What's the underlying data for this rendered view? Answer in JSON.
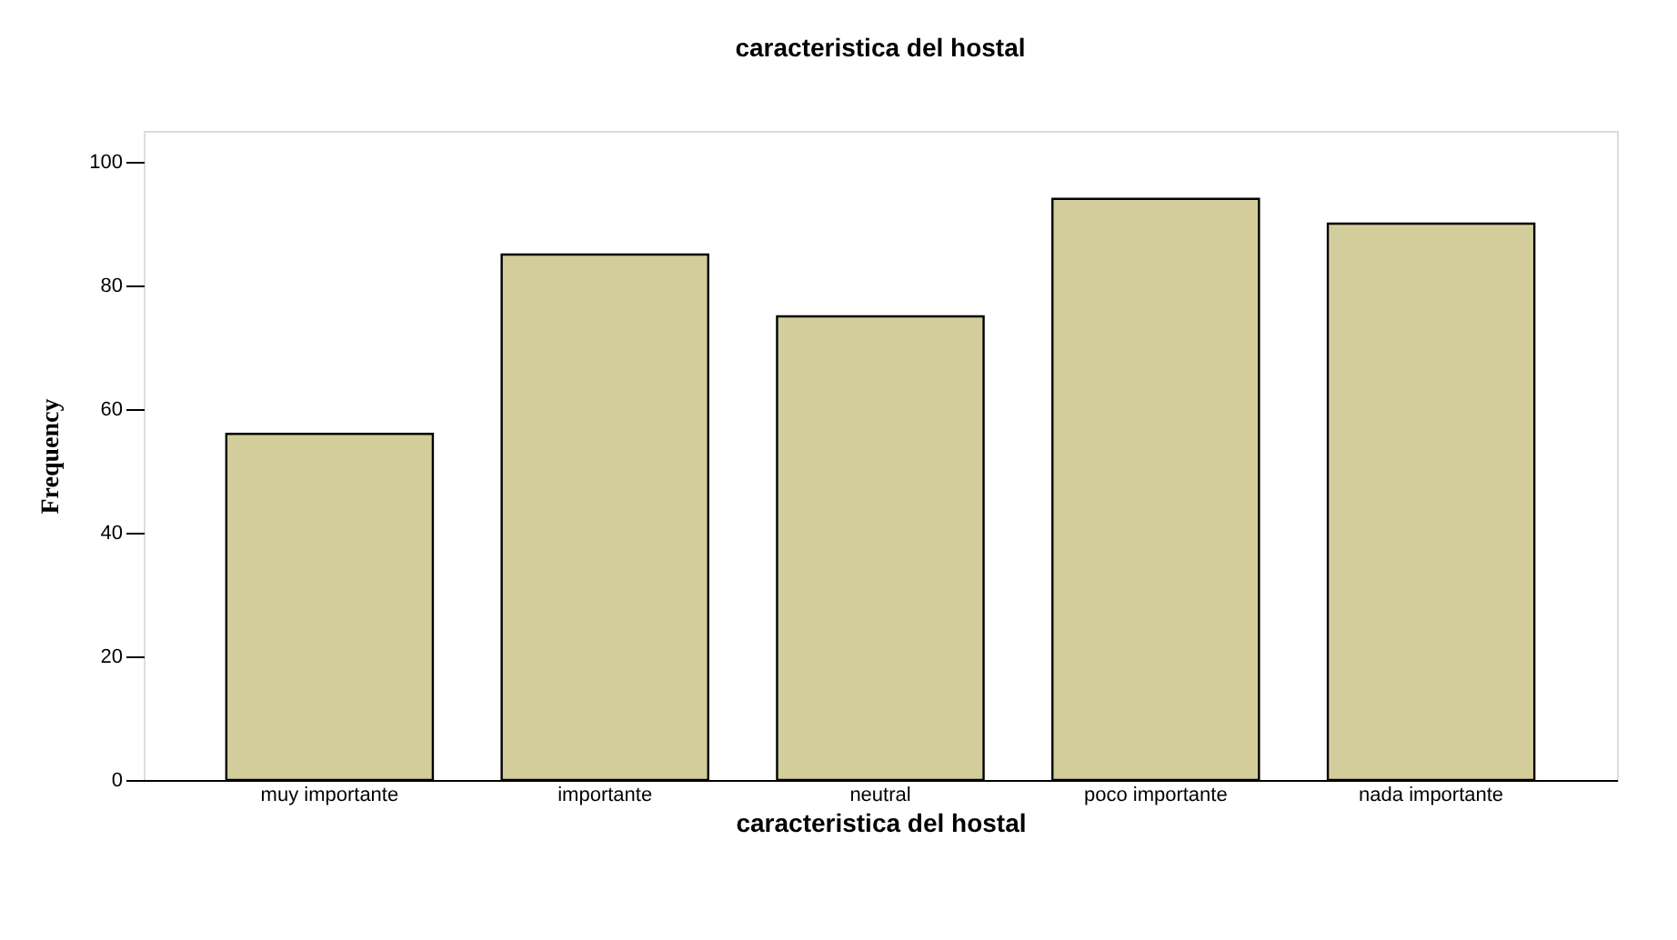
{
  "chart_data": {
    "type": "bar",
    "title": "caracteristica del hostal",
    "xlabel": "caracteristica del hostal",
    "ylabel": "Frequency",
    "categories": [
      "muy importante",
      "importante",
      "neutral",
      "poco importante",
      "nada importante"
    ],
    "values": [
      56,
      85,
      75,
      94,
      90
    ],
    "color": "#d3cd9b",
    "ylim": [
      0,
      105
    ],
    "yticks": [
      0,
      20,
      40,
      60,
      80,
      100
    ],
    "grid": false
  }
}
